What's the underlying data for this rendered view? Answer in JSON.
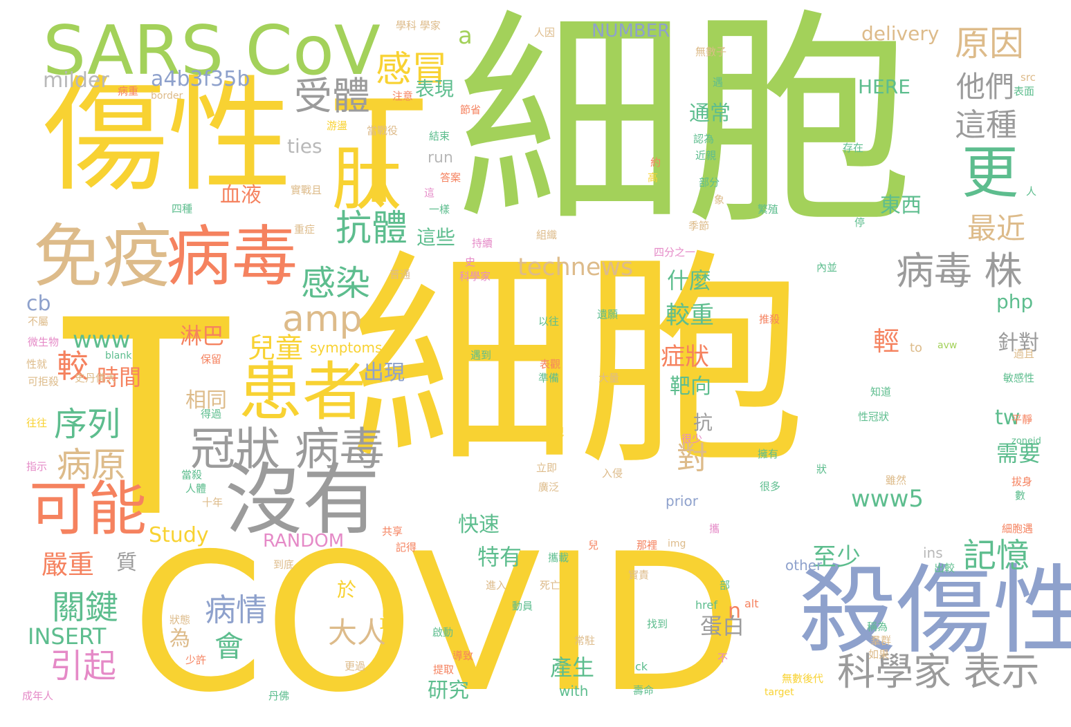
{
  "palette": {
    "yellow": "#f8d232",
    "green": "#a3d15a",
    "lightgreen": "#bde06b",
    "tan": "#ddbb8a",
    "gray": "#9b9b9b",
    "salmon": "#f5825f",
    "blue": "#8ea1cc",
    "teal": "#5dbd8e",
    "pink": "#e58ac7",
    "lightgray": "#b8b8b8"
  },
  "words": [
    {
      "t": "細胞",
      "c": "yellow"
    },
    {
      "t": "細胞",
      "c": "green"
    },
    {
      "t": "T",
      "c": "yellow"
    },
    {
      "t": "COVID",
      "c": "yellow"
    },
    {
      "t": "T",
      "c": "yellow"
    },
    {
      "t": "傷性",
      "c": "yellow"
    },
    {
      "t": "SARS CoV",
      "c": "green"
    },
    {
      "t": "殺傷性",
      "c": "blue"
    },
    {
      "t": "沒有",
      "c": "gray"
    },
    {
      "t": "肽",
      "c": "yellow"
    },
    {
      "t": "免疫",
      "c": "tan"
    },
    {
      "t": "病毒",
      "c": "salmon"
    },
    {
      "t": "患者",
      "c": "yellow"
    },
    {
      "t": "可能",
      "c": "salmon"
    },
    {
      "t": "冠狀 病毒",
      "c": "gray"
    },
    {
      "t": "病毒 株",
      "c": "gray"
    },
    {
      "t": "科學家 表示",
      "c": "gray"
    },
    {
      "t": "更",
      "c": "teal"
    },
    {
      "t": "受體",
      "c": "gray"
    },
    {
      "t": "感冒",
      "c": "yellow"
    },
    {
      "t": "抗體",
      "c": "teal"
    },
    {
      "t": "感染",
      "c": "teal"
    },
    {
      "t": "amp",
      "c": "tan"
    },
    {
      "t": "原因",
      "c": "tan"
    },
    {
      "t": "這種",
      "c": "gray"
    },
    {
      "t": "他們",
      "c": "gray"
    },
    {
      "t": "最近",
      "c": "tan"
    },
    {
      "t": "technews",
      "c": "tan"
    },
    {
      "t": "a4b3f35b",
      "c": "blue"
    },
    {
      "t": "milder",
      "c": "lightgray"
    },
    {
      "t": "NUMBER",
      "c": "blue"
    },
    {
      "t": "delivery",
      "c": "tan"
    },
    {
      "t": "a",
      "c": "green"
    },
    {
      "t": "HERE",
      "c": "teal"
    },
    {
      "t": "序列",
      "c": "teal"
    },
    {
      "t": "病原",
      "c": "tan"
    },
    {
      "t": "較",
      "c": "salmon"
    },
    {
      "t": "時間",
      "c": "salmon"
    },
    {
      "t": "www",
      "c": "teal"
    },
    {
      "t": "兒童",
      "c": "yellow"
    },
    {
      "t": "淋巴",
      "c": "salmon"
    },
    {
      "t": "關鍵",
      "c": "teal"
    },
    {
      "t": "引起",
      "c": "pink"
    },
    {
      "t": "嚴重",
      "c": "salmon"
    },
    {
      "t": "質",
      "c": "gray"
    },
    {
      "t": "病情",
      "c": "blue"
    },
    {
      "t": "會",
      "c": "teal"
    },
    {
      "t": "大人",
      "c": "tan"
    },
    {
      "t": "最",
      "c": "yellow"
    },
    {
      "t": "於",
      "c": "yellow"
    },
    {
      "t": "INSERT",
      "c": "teal"
    },
    {
      "t": "Study",
      "c": "yellow"
    },
    {
      "t": "RANDOM",
      "c": "pink"
    },
    {
      "t": "特有",
      "c": "teal"
    },
    {
      "t": "至少",
      "c": "teal"
    },
    {
      "t": "記憶",
      "c": "teal"
    },
    {
      "t": "www5",
      "c": "teal"
    },
    {
      "t": "對",
      "c": "tan"
    },
    {
      "t": "需要",
      "c": "teal"
    },
    {
      "t": "症狀",
      "c": "salmon"
    },
    {
      "t": "較重",
      "c": "teal"
    },
    {
      "t": "靶向",
      "c": "teal"
    },
    {
      "t": "什麼",
      "c": "teal"
    },
    {
      "t": "輕",
      "c": "salmon"
    },
    {
      "t": "針對",
      "c": "gray"
    },
    {
      "t": "tw",
      "c": "teal"
    },
    {
      "t": "php",
      "c": "teal"
    },
    {
      "t": "東西",
      "c": "teal"
    },
    {
      "t": "表現",
      "c": "teal"
    },
    {
      "t": "這些",
      "c": "teal"
    },
    {
      "t": "通常",
      "c": "teal"
    },
    {
      "t": "血液",
      "c": "salmon"
    },
    {
      "t": "ties",
      "c": "lightgray"
    },
    {
      "t": "run",
      "c": "lightgray"
    },
    {
      "t": "出現",
      "c": "blue"
    },
    {
      "t": "相同",
      "c": "tan"
    },
    {
      "t": "抗",
      "c": "gray"
    },
    {
      "t": "蛋白",
      "c": "gray"
    },
    {
      "t": "產生",
      "c": "teal"
    },
    {
      "t": "研究",
      "c": "teal"
    },
    {
      "t": "快速",
      "c": "teal"
    },
    {
      "t": "為",
      "c": "tan"
    },
    {
      "t": "cb",
      "c": "blue"
    },
    {
      "t": "symptoms",
      "c": "yellow"
    },
    {
      "t": "prior",
      "c": "blue"
    },
    {
      "t": "other",
      "c": "blue"
    },
    {
      "t": "ins",
      "c": "lightgray"
    },
    {
      "t": "with",
      "c": "teal"
    },
    {
      "t": "n",
      "c": "salmon"
    },
    {
      "t": "alt",
      "c": "salmon"
    },
    {
      "t": "href",
      "c": "teal"
    },
    {
      "t": "to",
      "c": "tan"
    },
    {
      "t": "ck",
      "c": "teal"
    },
    {
      "t": "img",
      "c": "tan"
    },
    {
      "t": "學科 學家",
      "c": "tan"
    },
    {
      "t": "人因",
      "c": "tan"
    },
    {
      "t": "無數子",
      "c": "tan"
    },
    {
      "t": "src",
      "c": "tan"
    },
    {
      "t": "表面",
      "c": "teal"
    },
    {
      "t": "病重",
      "c": "salmon"
    },
    {
      "t": "注意",
      "c": "salmon"
    },
    {
      "t": "border",
      "c": "tan"
    },
    {
      "t": "節省",
      "c": "salmon"
    },
    {
      "t": "遇",
      "c": "teal"
    },
    {
      "t": "游盪",
      "c": "yellow"
    },
    {
      "t": "當戰役",
      "c": "tan"
    },
    {
      "t": "結束",
      "c": "teal"
    },
    {
      "t": "存在",
      "c": "teal"
    },
    {
      "t": "認為",
      "c": "teal"
    },
    {
      "t": "近親",
      "c": "teal"
    },
    {
      "t": "約",
      "c": "salmon"
    },
    {
      "t": "高",
      "c": "yellow"
    },
    {
      "t": "部分",
      "c": "teal"
    },
    {
      "t": "答案",
      "c": "salmon"
    },
    {
      "t": "這",
      "c": "pink"
    },
    {
      "t": "一樣",
      "c": "teal"
    },
    {
      "t": "實戰且",
      "c": "tan"
    },
    {
      "t": "四種",
      "c": "teal"
    },
    {
      "t": "象",
      "c": "tan"
    },
    {
      "t": "繁殖",
      "c": "teal"
    },
    {
      "t": "季節",
      "c": "tan"
    },
    {
      "t": "停",
      "c": "teal"
    },
    {
      "t": "人",
      "c": "teal"
    },
    {
      "t": "重症",
      "c": "tan"
    },
    {
      "t": "持續",
      "c": "pink"
    },
    {
      "t": "組織",
      "c": "tan"
    },
    {
      "t": "四分之一",
      "c": "pink"
    },
    {
      "t": "內並",
      "c": "teal"
    },
    {
      "t": "史",
      "c": "pink"
    },
    {
      "t": "科學家",
      "c": "pink"
    },
    {
      "t": "普通",
      "c": "tan"
    },
    {
      "t": "以往",
      "c": "teal"
    },
    {
      "t": "遺願",
      "c": "teal"
    },
    {
      "t": "推殺",
      "c": "salmon"
    },
    {
      "t": "不屬",
      "c": "tan"
    },
    {
      "t": "微生物",
      "c": "pink"
    },
    {
      "t": "blank",
      "c": "teal"
    },
    {
      "t": "性就",
      "c": "tan"
    },
    {
      "t": "可拒殺",
      "c": "tan"
    },
    {
      "t": "史丹佛大",
      "c": "tan"
    },
    {
      "t": "保留",
      "c": "salmon"
    },
    {
      "t": "遇到",
      "c": "teal"
    },
    {
      "t": "表觀",
      "c": "salmon"
    },
    {
      "t": "準備",
      "c": "teal"
    },
    {
      "t": "大量",
      "c": "tan"
    },
    {
      "t": "avw",
      "c": "green"
    },
    {
      "t": "過且",
      "c": "tan"
    },
    {
      "t": "敏感性",
      "c": "teal"
    },
    {
      "t": "知道",
      "c": "teal"
    },
    {
      "t": "性冠狀",
      "c": "teal"
    },
    {
      "t": "往往",
      "c": "yellow"
    },
    {
      "t": "平靜",
      "c": "salmon"
    },
    {
      "t": "zoneid",
      "c": "teal"
    },
    {
      "t": "指示",
      "c": "pink"
    },
    {
      "t": "得過",
      "c": "teal"
    },
    {
      "t": "發現",
      "c": "yellow"
    },
    {
      "t": "很少",
      "c": "pink"
    },
    {
      "t": "擁有",
      "c": "teal"
    },
    {
      "t": "狀",
      "c": "teal"
    },
    {
      "t": "雖然",
      "c": "tan"
    },
    {
      "t": "拔身",
      "c": "salmon"
    },
    {
      "t": "數",
      "c": "teal"
    },
    {
      "t": "當殺",
      "c": "teal"
    },
    {
      "t": "立即",
      "c": "tan"
    },
    {
      "t": "入侵",
      "c": "tan"
    },
    {
      "t": "很多",
      "c": "teal"
    },
    {
      "t": "人體",
      "c": "teal"
    },
    {
      "t": "廣泛",
      "c": "tan"
    },
    {
      "t": "十年",
      "c": "tan"
    },
    {
      "t": "細胞遇",
      "c": "salmon"
    },
    {
      "t": "攜",
      "c": "pink"
    },
    {
      "t": "共享",
      "c": "salmon"
    },
    {
      "t": "記得",
      "c": "salmon"
    },
    {
      "t": "兒",
      "c": "salmon"
    },
    {
      "t": "攜載",
      "c": "teal"
    },
    {
      "t": "那裡",
      "c": "salmon"
    },
    {
      "t": "到底",
      "c": "tan"
    },
    {
      "t": "出較",
      "c": "teal"
    },
    {
      "t": "進入",
      "c": "tan"
    },
    {
      "t": "死亡",
      "c": "tan"
    },
    {
      "t": "實責",
      "c": "tan"
    },
    {
      "t": "部",
      "c": "teal"
    },
    {
      "t": "狀態",
      "c": "tan"
    },
    {
      "t": "動員",
      "c": "teal"
    },
    {
      "t": "稱為",
      "c": "teal"
    },
    {
      "t": "找到",
      "c": "teal"
    },
    {
      "t": "啟動",
      "c": "teal"
    },
    {
      "t": "常駐",
      "c": "tan"
    },
    {
      "t": "羣群",
      "c": "tan"
    },
    {
      "t": "如果",
      "c": "tan"
    },
    {
      "t": "導致",
      "c": "salmon"
    },
    {
      "t": "少許",
      "c": "salmon"
    },
    {
      "t": "不",
      "c": "pink"
    },
    {
      "t": "提取",
      "c": "salmon"
    },
    {
      "t": "更過",
      "c": "tan"
    },
    {
      "t": "無數後代",
      "c": "yellow"
    },
    {
      "t": "壽命",
      "c": "teal"
    },
    {
      "t": "target",
      "c": "yellow"
    },
    {
      "t": "成年人",
      "c": "pink"
    },
    {
      "t": "丹佛",
      "c": "teal"
    }
  ]
}
